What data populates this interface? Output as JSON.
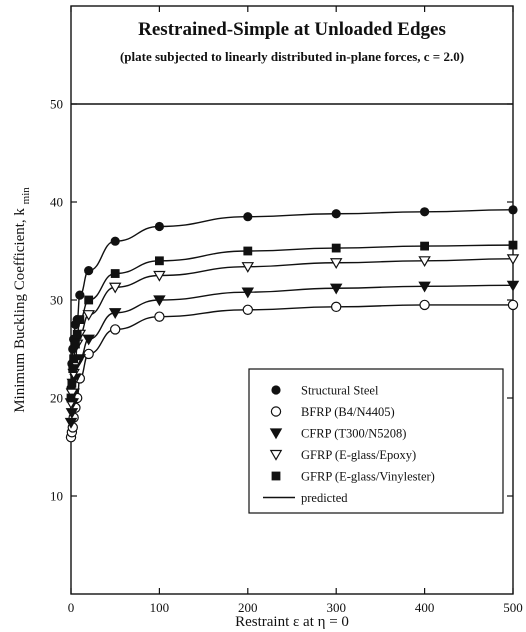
{
  "chart_data": {
    "type": "scatter",
    "title": "Restrained-Simple at Unloaded Edges",
    "subtitle": "(plate subjected to linearly distributed in-plane forces, c = 2.0)",
    "xlabel": "Restraint ε at η = 0",
    "ylabel": "Minimum Buckling Coefficient, k",
    "ylabel_subscript": "min",
    "xlim": [
      0,
      500
    ],
    "ylim": [
      0,
      60
    ],
    "xticks": [
      0,
      100,
      200,
      300,
      400,
      500
    ],
    "yticks": [
      10,
      20,
      30,
      40,
      50
    ],
    "reference_line_y": 50,
    "grid": false,
    "legend_position": "bottom-right",
    "series": [
      {
        "name": "Structural Steel",
        "marker": "filled-circle",
        "x": [
          0,
          1,
          2,
          3,
          5,
          7,
          10,
          20,
          50,
          100,
          200,
          300,
          400,
          500
        ],
        "y": [
          21.0,
          23.5,
          25.0,
          26.0,
          27.5,
          28.0,
          30.5,
          33.0,
          36.0,
          37.5,
          38.5,
          38.8,
          39.0,
          39.2
        ]
      },
      {
        "name": "BFRP (B4/N4405)",
        "marker": "open-circle",
        "x": [
          0,
          1,
          2,
          3,
          5,
          7,
          10,
          20,
          50,
          100,
          200,
          300,
          400,
          500
        ],
        "y": [
          16.0,
          16.5,
          17.0,
          18.0,
          19.0,
          20.0,
          22.0,
          24.5,
          27.0,
          28.3,
          29.0,
          29.3,
          29.5,
          29.5
        ]
      },
      {
        "name": "CFRP (T300/N5208)",
        "marker": "filled-triangle-down",
        "x": [
          0,
          1,
          2,
          3,
          5,
          7,
          10,
          20,
          50,
          100,
          200,
          300,
          400,
          500
        ],
        "y": [
          17.5,
          18.5,
          19.5,
          20.5,
          22.0,
          23.5,
          24.0,
          26.0,
          28.7,
          30.0,
          30.8,
          31.2,
          31.4,
          31.5
        ]
      },
      {
        "name": "GFRP (E-glass/Epoxy)",
        "marker": "open-triangle-down",
        "x": [
          0,
          1,
          2,
          3,
          5,
          7,
          10,
          20,
          50,
          100,
          200,
          300,
          400,
          500
        ],
        "y": [
          19.5,
          20.5,
          21.5,
          22.5,
          23.5,
          25.5,
          26.5,
          28.5,
          31.3,
          32.5,
          33.4,
          33.8,
          34.0,
          34.2
        ]
      },
      {
        "name": "GFRP (E-glass/Vinylester)",
        "marker": "filled-square",
        "x": [
          0,
          1,
          2,
          3,
          5,
          7,
          10,
          20,
          50,
          100,
          200,
          300,
          400,
          500
        ],
        "y": [
          20.0,
          21.5,
          23.0,
          24.0,
          25.5,
          26.5,
          28.0,
          30.0,
          32.7,
          34.0,
          35.0,
          35.3,
          35.5,
          35.6
        ]
      },
      {
        "name": "predicted",
        "marker": "line"
      }
    ]
  }
}
